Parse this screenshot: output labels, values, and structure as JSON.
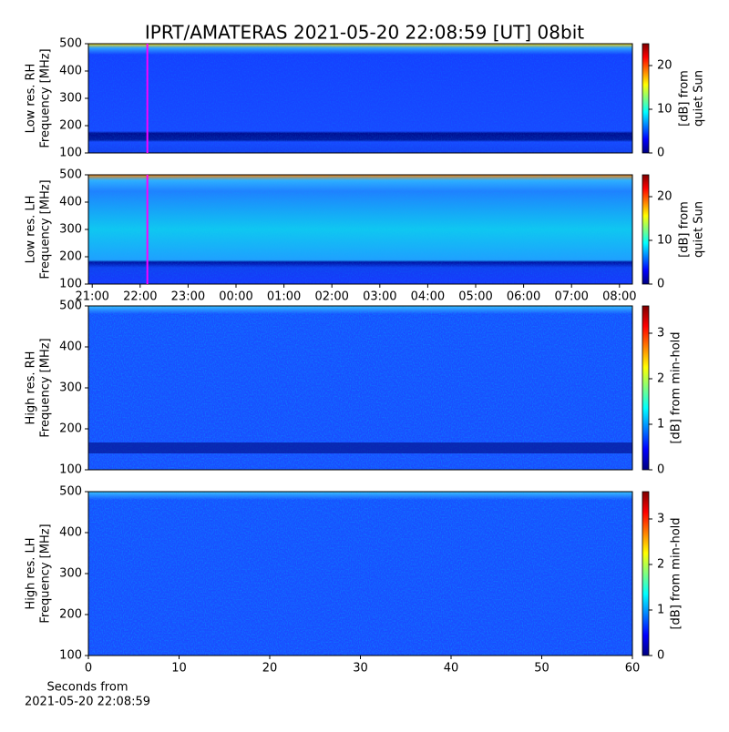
{
  "title": "IPRT/AMATERAS 2021-05-20 22:08:59 [UT]   08bit",
  "chart_data": [
    {
      "type": "heatmap",
      "ylabel": [
        "Low res. RH",
        "Frequency [MHz]"
      ],
      "ylim": [
        100,
        500
      ],
      "yticks": [
        100,
        200,
        300,
        400,
        500
      ],
      "xlim": [
        20.92,
        32.27
      ],
      "marker_x": 22.15,
      "marker_color": "#ff00ff",
      "clim": [
        0,
        25
      ],
      "cticks": [
        0,
        10,
        20
      ],
      "clabel": [
        "[dB] from",
        "quiet Sun"
      ]
    },
    {
      "type": "heatmap",
      "ylabel": [
        "Low res. LH",
        "Frequency [MHz]"
      ],
      "ylim": [
        100,
        500
      ],
      "yticks": [
        100,
        200,
        300,
        400,
        500
      ],
      "xlim": [
        20.92,
        32.27
      ],
      "marker_x": 22.15,
      "marker_color": "#ff00ff",
      "xticks": [
        {
          "value": 21,
          "label": "21:00"
        },
        {
          "value": 22,
          "label": "22:00"
        },
        {
          "value": 23,
          "label": "23:00"
        },
        {
          "value": 24,
          "label": "00:00"
        },
        {
          "value": 25,
          "label": "01:00"
        },
        {
          "value": 26,
          "label": "02:00"
        },
        {
          "value": 27,
          "label": "03:00"
        },
        {
          "value": 28,
          "label": "04:00"
        },
        {
          "value": 29,
          "label": "05:00"
        },
        {
          "value": 30,
          "label": "06:00"
        },
        {
          "value": 31,
          "label": "07:00"
        },
        {
          "value": 32,
          "label": "08:00"
        }
      ],
      "clim": [
        0,
        25
      ],
      "cticks": [
        0,
        10,
        20
      ],
      "clabel": [
        "[dB] from",
        "quiet Sun"
      ]
    },
    {
      "type": "heatmap",
      "ylabel": [
        "High res. RH",
        "Frequency [MHz]"
      ],
      "ylim": [
        100,
        500
      ],
      "yticks": [
        100,
        200,
        300,
        400,
        500
      ],
      "xlim": [
        0,
        60
      ],
      "clim": [
        0,
        3.6
      ],
      "cticks": [
        0,
        1,
        2,
        3
      ],
      "clabel": [
        "[dB] from min-hold"
      ]
    },
    {
      "type": "heatmap",
      "ylabel": [
        "High res. LH",
        "Frequency [MHz]"
      ],
      "ylim": [
        100,
        500
      ],
      "yticks": [
        100,
        200,
        300,
        400,
        500
      ],
      "xlim": [
        0,
        60
      ],
      "xticks": [
        0,
        10,
        20,
        30,
        40,
        50,
        60
      ],
      "xlabel": [
        "Seconds from",
        "2021-05-20 22:08:59"
      ],
      "clim": [
        0,
        3.6
      ],
      "cticks": [
        0,
        1,
        2,
        3
      ],
      "clabel": [
        "[dB] from min-hold"
      ]
    }
  ]
}
